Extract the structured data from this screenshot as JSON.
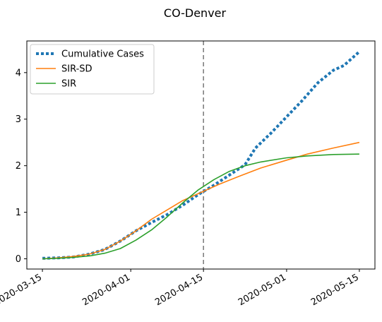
{
  "chart_data": {
    "type": "line",
    "title": "CO-Denver",
    "xlabel": "",
    "ylabel": "",
    "x_axis": {
      "type": "date",
      "range": [
        "2020-03-12",
        "2020-05-18"
      ],
      "ticks": [
        "2020-03-15",
        "2020-04-01",
        "2020-04-15",
        "2020-05-01",
        "2020-05-15"
      ]
    },
    "y_axis": {
      "range": [
        -0.22,
        4.68
      ],
      "ticks": [
        0,
        1,
        2,
        3,
        4
      ]
    },
    "vline": {
      "date": "2020-04-15",
      "style": "dashed",
      "color": "#7f7f7f"
    },
    "grid": false,
    "legend": "top-left",
    "series": [
      {
        "name": "Cumulative Cases",
        "style": "dotted",
        "color": "#1f77b4",
        "points": [
          [
            "2020-03-15",
            0.01
          ],
          [
            "2020-03-18",
            0.02
          ],
          [
            "2020-03-21",
            0.04
          ],
          [
            "2020-03-24",
            0.1
          ],
          [
            "2020-03-27",
            0.2
          ],
          [
            "2020-03-30",
            0.38
          ],
          [
            "2020-04-02",
            0.6
          ],
          [
            "2020-04-05",
            0.78
          ],
          [
            "2020-04-08",
            0.95
          ],
          [
            "2020-04-11",
            1.15
          ],
          [
            "2020-04-14",
            1.38
          ],
          [
            "2020-04-17",
            1.58
          ],
          [
            "2020-04-20",
            1.8
          ],
          [
            "2020-04-23",
            2.02
          ],
          [
            "2020-04-25",
            2.38
          ],
          [
            "2020-04-28",
            2.7
          ],
          [
            "2020-05-01",
            3.05
          ],
          [
            "2020-05-04",
            3.4
          ],
          [
            "2020-05-07",
            3.78
          ],
          [
            "2020-05-10",
            4.05
          ],
          [
            "2020-05-12",
            4.15
          ],
          [
            "2020-05-15",
            4.45
          ]
        ]
      },
      {
        "name": "SIR-SD",
        "style": "solid",
        "color": "#ff7f0e",
        "points": [
          [
            "2020-03-15",
            0.0
          ],
          [
            "2020-03-18",
            0.02
          ],
          [
            "2020-03-21",
            0.05
          ],
          [
            "2020-03-24",
            0.1
          ],
          [
            "2020-03-27",
            0.2
          ],
          [
            "2020-03-30",
            0.38
          ],
          [
            "2020-04-02",
            0.6
          ],
          [
            "2020-04-05",
            0.85
          ],
          [
            "2020-04-08",
            1.05
          ],
          [
            "2020-04-11",
            1.25
          ],
          [
            "2020-04-15",
            1.45
          ],
          [
            "2020-04-18",
            1.6
          ],
          [
            "2020-04-22",
            1.78
          ],
          [
            "2020-04-26",
            1.95
          ],
          [
            "2020-05-01",
            2.12
          ],
          [
            "2020-05-05",
            2.25
          ],
          [
            "2020-05-10",
            2.38
          ],
          [
            "2020-05-15",
            2.5
          ]
        ]
      },
      {
        "name": "SIR",
        "style": "solid",
        "color": "#2ca02c",
        "points": [
          [
            "2020-03-15",
            0.0
          ],
          [
            "2020-03-18",
            0.01
          ],
          [
            "2020-03-21",
            0.03
          ],
          [
            "2020-03-24",
            0.06
          ],
          [
            "2020-03-27",
            0.12
          ],
          [
            "2020-03-30",
            0.22
          ],
          [
            "2020-04-02",
            0.4
          ],
          [
            "2020-04-05",
            0.62
          ],
          [
            "2020-04-08",
            0.9
          ],
          [
            "2020-04-11",
            1.2
          ],
          [
            "2020-04-14",
            1.48
          ],
          [
            "2020-04-17",
            1.7
          ],
          [
            "2020-04-20",
            1.88
          ],
          [
            "2020-04-23",
            2.0
          ],
          [
            "2020-04-26",
            2.08
          ],
          [
            "2020-05-01",
            2.17
          ],
          [
            "2020-05-05",
            2.21
          ],
          [
            "2020-05-10",
            2.24
          ],
          [
            "2020-05-15",
            2.25
          ]
        ]
      }
    ]
  }
}
